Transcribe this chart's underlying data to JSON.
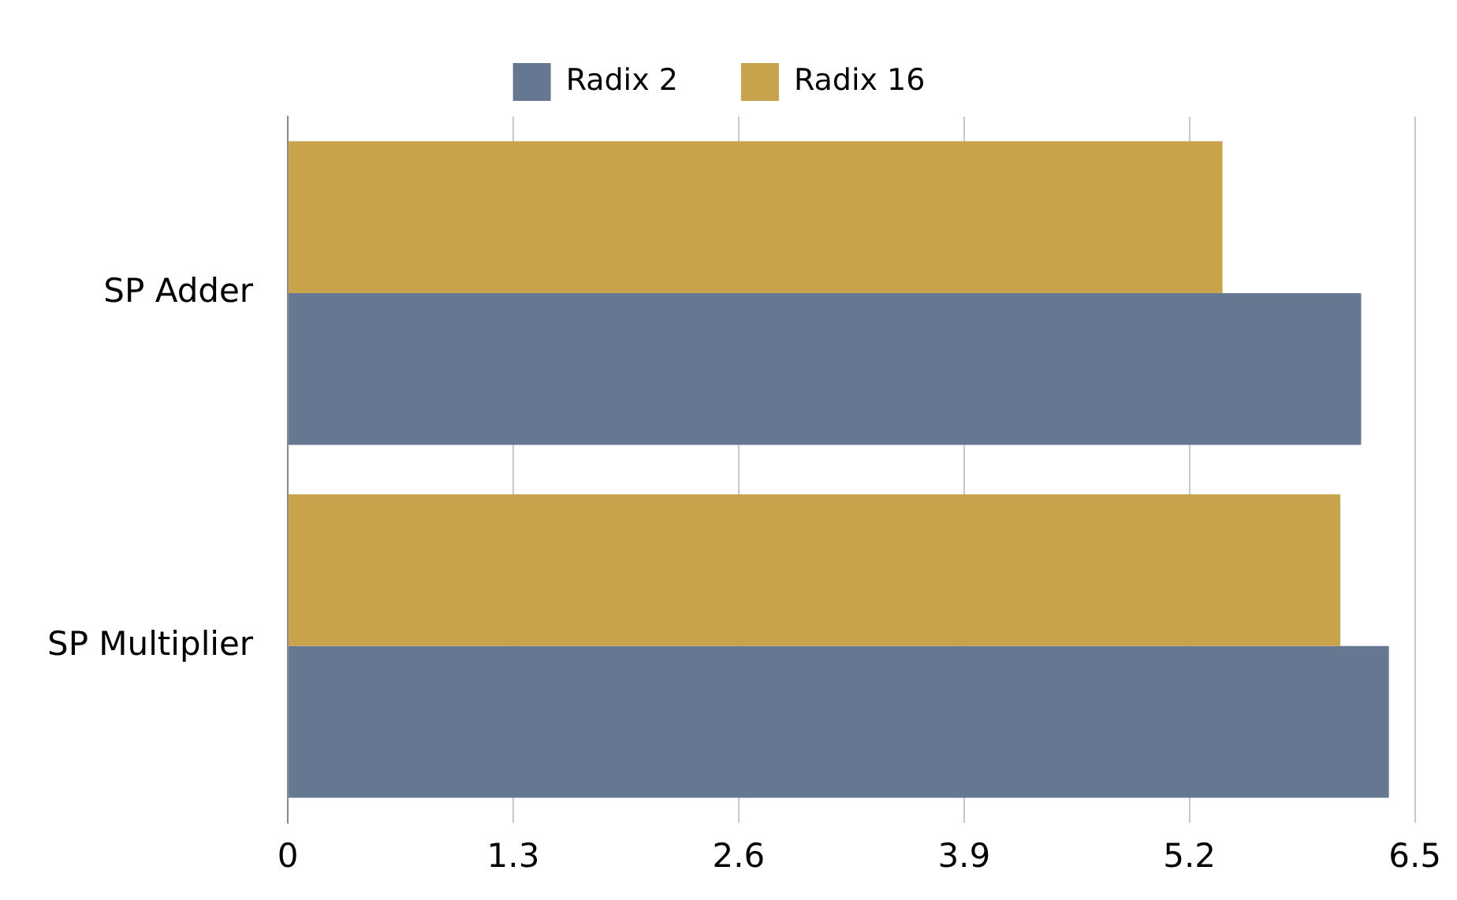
{
  "chart_data": {
    "type": "bar",
    "orientation": "horizontal",
    "categories": [
      "SP Adder",
      "SP Multiplier"
    ],
    "series": [
      {
        "name": "Radix 2",
        "color": "#667792",
        "values": [
          6.19,
          6.35
        ]
      },
      {
        "name": "Radix 16",
        "color": "#c9a24c",
        "values": [
          5.39,
          6.07
        ]
      }
    ],
    "xlim": [
      0,
      6.5
    ],
    "xticks": [
      0,
      1.3,
      2.6,
      3.9,
      5.2,
      6.5
    ],
    "grid": "x",
    "legend": "top"
  }
}
